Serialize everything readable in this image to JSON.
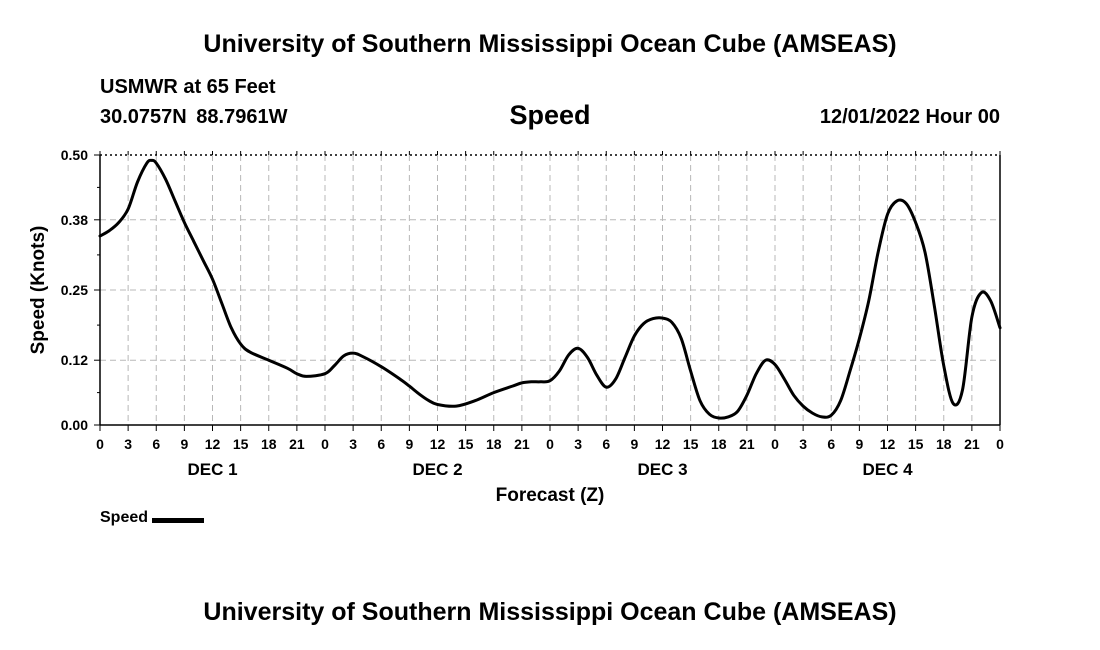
{
  "header": {
    "title": "University of Southern Mississippi Ocean Cube (AMSEAS)",
    "station": "USMWR at 65 Feet",
    "coordinates": "30.0757N  88.7961W",
    "plot_title": "Speed",
    "datetime": "12/01/2022 Hour 00"
  },
  "footer": {
    "title": "University of Southern Mississippi Ocean Cube (AMSEAS)"
  },
  "legend": {
    "label": "Speed"
  },
  "chart_data": {
    "type": "line",
    "title": "Speed",
    "xlabel": "Forecast (Z)",
    "ylabel": "Speed (Knots)",
    "xlim": [
      0,
      96
    ],
    "ylim": [
      0,
      0.5
    ],
    "yticks": [
      0.0,
      0.12,
      0.25,
      0.38,
      0.5
    ],
    "ytick_labels": [
      "0.00",
      "0.12",
      "0.25",
      "0.38",
      "0.50"
    ],
    "xtick_step_hours": 3,
    "xtick_labels": [
      "0",
      "3",
      "6",
      "9",
      "12",
      "15",
      "18",
      "21",
      "0",
      "3",
      "6",
      "9",
      "12",
      "15",
      "18",
      "21",
      "0",
      "3",
      "6",
      "9",
      "12",
      "15",
      "18",
      "21",
      "0",
      "3",
      "6",
      "9",
      "12",
      "15",
      "18",
      "21",
      "0"
    ],
    "day_labels": [
      {
        "label": "DEC 1",
        "hour": 12
      },
      {
        "label": "DEC 2",
        "hour": 36
      },
      {
        "label": "DEC 3",
        "hour": 60
      },
      {
        "label": "DEC 4",
        "hour": 84
      }
    ],
    "grid": true,
    "line_color": "#000000",
    "series": [
      {
        "name": "Speed",
        "x": [
          0,
          1,
          2,
          3,
          4,
          5,
          5.5,
          6,
          7,
          8,
          9,
          10,
          11,
          12,
          13,
          14,
          15,
          16,
          18,
          20,
          21,
          22,
          24,
          25,
          26,
          27,
          28,
          30,
          32,
          33,
          34,
          35,
          36,
          38,
          40,
          42,
          44,
          45,
          46,
          47,
          48,
          49,
          50,
          51,
          52,
          53,
          54,
          55,
          56,
          57,
          58,
          59,
          60,
          61,
          62,
          63,
          64,
          65,
          66,
          67,
          68,
          69,
          70,
          71,
          72,
          73,
          74,
          75,
          76,
          77,
          78,
          79,
          80,
          81,
          82,
          83,
          84,
          85,
          86,
          87,
          88,
          89,
          90,
          91,
          92,
          93,
          94,
          95,
          96
        ],
        "y": [
          0.35,
          0.36,
          0.375,
          0.4,
          0.45,
          0.485,
          0.49,
          0.485,
          0.455,
          0.415,
          0.375,
          0.34,
          0.305,
          0.27,
          0.225,
          0.18,
          0.15,
          0.135,
          0.12,
          0.105,
          0.095,
          0.09,
          0.095,
          0.11,
          0.128,
          0.133,
          0.127,
          0.108,
          0.085,
          0.072,
          0.058,
          0.046,
          0.038,
          0.035,
          0.045,
          0.06,
          0.072,
          0.078,
          0.08,
          0.08,
          0.082,
          0.1,
          0.13,
          0.142,
          0.125,
          0.092,
          0.07,
          0.085,
          0.125,
          0.165,
          0.188,
          0.197,
          0.198,
          0.19,
          0.16,
          0.1,
          0.045,
          0.02,
          0.013,
          0.015,
          0.025,
          0.055,
          0.095,
          0.12,
          0.112,
          0.085,
          0.055,
          0.035,
          0.022,
          0.015,
          0.018,
          0.045,
          0.1,
          0.16,
          0.23,
          0.32,
          0.39,
          0.415,
          0.41,
          0.375,
          0.32,
          0.22,
          0.11,
          0.04,
          0.065,
          0.2,
          0.245,
          0.23,
          0.18
        ]
      }
    ]
  }
}
